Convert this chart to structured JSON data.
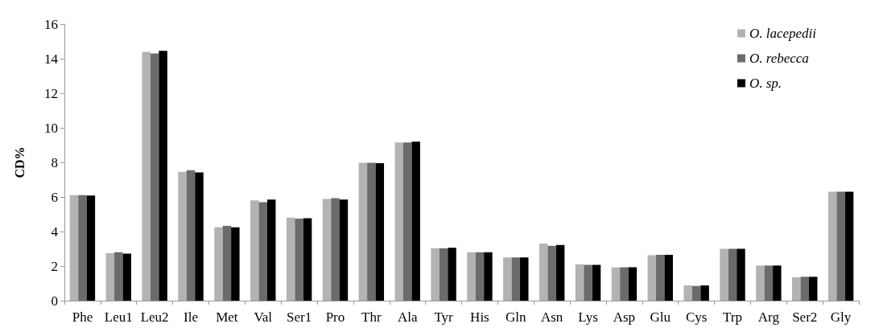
{
  "chart_data": {
    "type": "bar",
    "ylabel": "CD%",
    "categories": [
      "Phe",
      "Leu1",
      "Leu2",
      "Ile",
      "Met",
      "Val",
      "Ser1",
      "Pro",
      "Thr",
      "Ala",
      "Tyr",
      "His",
      "Gln",
      "Asn",
      "Lys",
      "Asp",
      "Glu",
      "Cys",
      "Trp",
      "Arg",
      "Ser2",
      "Gly"
    ],
    "series": [
      {
        "name": "O. lacepedii",
        "color": "#b3b3b3",
        "values": [
          6.1,
          2.75,
          14.4,
          7.45,
          4.25,
          5.8,
          4.8,
          5.88,
          7.98,
          9.15,
          3.03,
          2.8,
          2.5,
          3.3,
          2.1,
          1.92,
          2.63,
          0.88,
          3.0,
          2.03,
          1.35,
          6.3
        ]
      },
      {
        "name": "O. rebecca",
        "color": "#6b6b6b",
        "values": [
          6.1,
          2.8,
          14.3,
          7.55,
          4.32,
          5.7,
          4.75,
          5.93,
          7.98,
          9.15,
          3.03,
          2.8,
          2.5,
          3.17,
          2.07,
          1.93,
          2.65,
          0.85,
          3.0,
          2.03,
          1.38,
          6.3
        ]
      },
      {
        "name": "O. sp.",
        "color": "#000000",
        "values": [
          6.08,
          2.72,
          14.45,
          7.42,
          4.25,
          5.85,
          4.77,
          5.85,
          7.95,
          9.2,
          3.06,
          2.8,
          2.5,
          3.22,
          2.07,
          1.93,
          2.65,
          0.88,
          3.0,
          2.03,
          1.38,
          6.3
        ]
      }
    ],
    "ylim": [
      0,
      16
    ],
    "yticks": [
      0,
      2,
      4,
      6,
      8,
      10,
      12,
      14,
      16
    ],
    "grid": false,
    "legend": "top right"
  }
}
